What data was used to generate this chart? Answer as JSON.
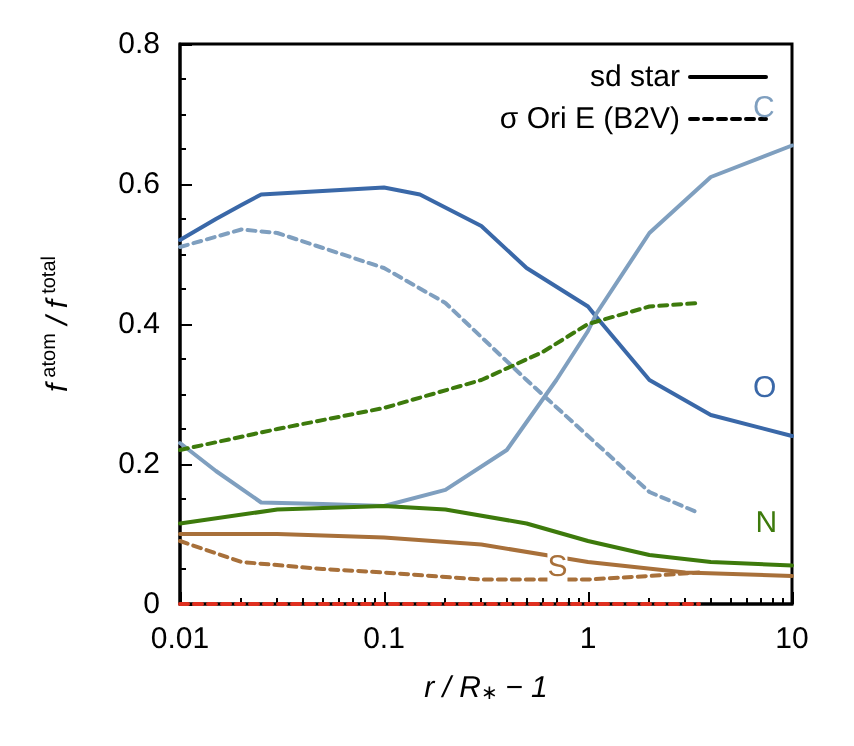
{
  "chart_data": {
    "type": "line",
    "xlabel": "r / R$_{∗}$ − 1",
    "ylabel": "f$^{atom}$ / f$^{total}$",
    "log": "x",
    "xlim": [
      0.01,
      10
    ],
    "xticks": [
      0.01,
      0.1,
      1,
      10
    ],
    "ylim": [
      0,
      0.8
    ],
    "yticks": [
      0,
      0.2,
      0.4,
      0.6,
      0.8
    ],
    "grid": false,
    "legend": "top right",
    "annotations": [
      "C",
      "O",
      "N",
      "S"
    ],
    "series": [
      {
        "name": "sd star",
        "color": "#000000",
        "line_style": "solid"
      },
      {
        "name": "σ Ori E (B2V)",
        "color": "#000000",
        "line_style": "dashed"
      },
      {
        "color": "#3a68a8",
        "line_style": "solid",
        "x": [
          0.01,
          0.015,
          0.02,
          0.025,
          0.05,
          0.1,
          0.15,
          0.3,
          0.5,
          1,
          1.1,
          2,
          4,
          10
        ],
        "values": [
          0.52,
          0.55,
          0.57,
          0.585,
          0.59,
          0.595,
          0.585,
          0.54,
          0.48,
          0.425,
          0.41,
          0.32,
          0.27,
          0.24
        ]
      },
      {
        "color": "#7f9fbf",
        "line_style": "solid",
        "x": [
          0.01,
          0.015,
          0.025,
          0.05,
          0.1,
          0.2,
          0.4,
          0.7,
          1,
          1.1,
          2,
          4,
          10
        ],
        "values": [
          0.23,
          0.19,
          0.145,
          0.143,
          0.14,
          0.163,
          0.22,
          0.32,
          0.39,
          0.415,
          0.53,
          0.61,
          0.655
        ]
      },
      {
        "color": "#7f9fbf",
        "line_style": "dashed",
        "x": [
          0.01,
          0.02,
          0.03,
          0.1,
          0.2,
          0.5,
          1,
          2,
          3.5
        ],
        "values": [
          0.51,
          0.535,
          0.53,
          0.48,
          0.43,
          0.32,
          0.24,
          0.16,
          0.13
        ]
      },
      {
        "color": "#3d7a0c",
        "line_style": "solid",
        "x": [
          0.01,
          0.03,
          0.1,
          0.2,
          0.5,
          1,
          2,
          4,
          10
        ],
        "values": [
          0.115,
          0.135,
          0.14,
          0.135,
          0.115,
          0.09,
          0.07,
          0.06,
          0.055
        ]
      },
      {
        "color": "#3d7a0c",
        "line_style": "dashed",
        "x": [
          0.01,
          0.03,
          0.1,
          0.3,
          0.6,
          1,
          2,
          3.5
        ],
        "values": [
          0.22,
          0.25,
          0.28,
          0.32,
          0.36,
          0.4,
          0.425,
          0.43
        ]
      },
      {
        "color": "#a8703a",
        "line_style": "solid",
        "x": [
          0.01,
          0.03,
          0.1,
          0.3,
          1,
          3,
          10
        ],
        "values": [
          0.1,
          0.1,
          0.095,
          0.085,
          0.06,
          0.045,
          0.04
        ]
      },
      {
        "color": "#a8703a",
        "line_style": "dashed",
        "x": [
          0.01,
          0.02,
          0.05,
          0.1,
          0.3,
          1,
          2,
          3.5
        ],
        "values": [
          0.09,
          0.06,
          0.05,
          0.045,
          0.035,
          0.035,
          0.04,
          0.045
        ]
      },
      {
        "color": "#e03020",
        "line_style": "dashed",
        "x": [
          0.01,
          0.1,
          1,
          3.5
        ],
        "values": [
          0,
          0,
          0,
          0
        ]
      }
    ]
  }
}
